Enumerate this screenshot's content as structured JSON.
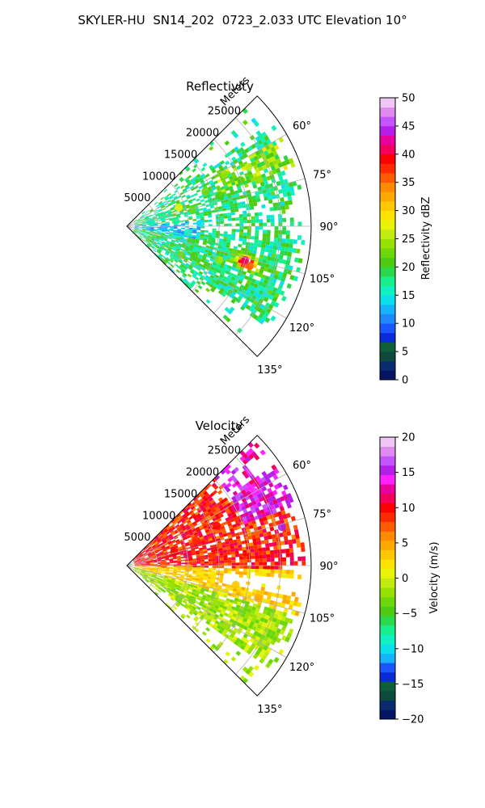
{
  "figure": {
    "title": "SKYLER-HU  SN14_202  0723_2.033 UTC Elevation 10°"
  },
  "chart_data": [
    {
      "type": "polar-sector-radar",
      "title": "Reflectivity",
      "radial_axis_label": "Meters",
      "radial_ticks": [
        5000,
        10000,
        15000,
        20000,
        25000
      ],
      "radial_tick_labels": [
        "5000",
        "10000",
        "15000",
        "20000",
        "25000"
      ],
      "rmax": 30000,
      "theta_range_deg": [
        45,
        135
      ],
      "angle_ticks_deg": [
        60,
        75,
        90,
        105,
        120,
        135
      ],
      "angle_tick_labels": [
        "60°",
        "75°",
        "90°",
        "105°",
        "120°",
        "135°"
      ],
      "colorbar": {
        "label": "Reflectivity dBZ",
        "range": [
          0,
          50
        ],
        "ticks": [
          0,
          5,
          10,
          15,
          20,
          25,
          30,
          35,
          40,
          45,
          50
        ],
        "tick_labels": [
          "0",
          "5",
          "10",
          "15",
          "20",
          "25",
          "30",
          "35",
          "40",
          "45",
          "50"
        ],
        "colors": [
          "#061464",
          "#0a2c6e",
          "#0c4a3e",
          "#0f5e3a",
          "#0a2ad8",
          "#1a55ff",
          "#1f88ff",
          "#14b4ff",
          "#0ce0ec",
          "#10f0c0",
          "#18ee8c",
          "#2ad84a",
          "#4ccc10",
          "#6cd80a",
          "#98e000",
          "#c2ec10",
          "#eaf208",
          "#ffe200",
          "#ffc800",
          "#ffa800",
          "#ff8a00",
          "#ff5a00",
          "#ff2a00",
          "#ff0000",
          "#f2005a",
          "#e8009c",
          "#b41ee8",
          "#c454ff",
          "#de8aee",
          "#f0c6f4"
        ]
      },
      "cells": [
        {
          "az": 62,
          "r": 18000,
          "v": 24
        },
        {
          "az": 64,
          "r": 22000,
          "v": 26
        },
        {
          "az": 66,
          "r": 14000,
          "v": 22
        },
        {
          "az": 68,
          "r": 20000,
          "v": 20
        },
        {
          "az": 70,
          "r": 9000,
          "v": 28
        },
        {
          "az": 72,
          "r": 16000,
          "v": 21
        },
        {
          "az": 74,
          "r": 6000,
          "v": 18
        },
        {
          "az": 76,
          "r": 11000,
          "v": 23
        },
        {
          "az": 80,
          "r": 4000,
          "v": 16
        },
        {
          "az": 84,
          "r": 8000,
          "v": 17
        },
        {
          "az": 88,
          "r": 12000,
          "v": 14
        },
        {
          "az": 92,
          "r": 6000,
          "v": 12
        },
        {
          "az": 96,
          "r": 10000,
          "v": 15
        },
        {
          "az": 100,
          "r": 14000,
          "v": 19
        },
        {
          "az": 104,
          "r": 18000,
          "v": 22
        },
        {
          "az": 106,
          "r": 20000,
          "v": 40
        },
        {
          "az": 108,
          "r": 21000,
          "v": 36
        },
        {
          "az": 110,
          "r": 16000,
          "v": 24
        },
        {
          "az": 114,
          "r": 12000,
          "v": 20
        },
        {
          "az": 118,
          "r": 10000,
          "v": 22
        },
        {
          "az": 122,
          "r": 9000,
          "v": 18
        }
      ]
    },
    {
      "type": "polar-sector-radar",
      "title": "Velocity",
      "radial_axis_label": "Meters",
      "radial_ticks": [
        5000,
        10000,
        15000,
        20000,
        25000
      ],
      "radial_tick_labels": [
        "5000",
        "10000",
        "15000",
        "20000",
        "25000"
      ],
      "rmax": 30000,
      "theta_range_deg": [
        45,
        135
      ],
      "angle_ticks_deg": [
        60,
        75,
        90,
        105,
        120,
        135
      ],
      "angle_tick_labels": [
        "60°",
        "75°",
        "90°",
        "105°",
        "120°",
        "135°"
      ],
      "colorbar": {
        "label": "Velocity (m/s)",
        "range": [
          -20,
          20
        ],
        "ticks": [
          -20,
          -15,
          -10,
          -5,
          0,
          5,
          10,
          15,
          20
        ],
        "tick_labels": [
          "−20",
          "−15",
          "−10",
          "−5",
          "0",
          "5",
          "10",
          "15",
          "20"
        ],
        "colors": [
          "#061464",
          "#0a2c6e",
          "#0c4a3e",
          "#0f5e3a",
          "#0a2ad8",
          "#1a55ff",
          "#14b4ff",
          "#0ce0ec",
          "#10f0c0",
          "#18ee8c",
          "#2ad84a",
          "#4ccc10",
          "#6cd80a",
          "#98e000",
          "#c2ec10",
          "#eaf208",
          "#ffe200",
          "#ffc800",
          "#ffa800",
          "#ff8a00",
          "#ff5a00",
          "#ff2a00",
          "#ff0000",
          "#f2005a",
          "#e8009c",
          "#ff20ff",
          "#b41ee8",
          "#c454ff",
          "#de8aee",
          "#f0c6f4"
        ]
      },
      "cells": [
        {
          "az": 60,
          "r": 24000,
          "v": 14
        },
        {
          "az": 62,
          "r": 20000,
          "v": 12
        },
        {
          "az": 66,
          "r": 16000,
          "v": 10
        },
        {
          "az": 70,
          "r": 12000,
          "v": 9
        },
        {
          "az": 74,
          "r": 8000,
          "v": 10
        },
        {
          "az": 76,
          "r": 26000,
          "v": 15
        },
        {
          "az": 80,
          "r": 10000,
          "v": 11
        },
        {
          "az": 84,
          "r": 14000,
          "v": 8
        },
        {
          "az": 88,
          "r": 6000,
          "v": 7
        },
        {
          "az": 92,
          "r": 10000,
          "v": 4
        },
        {
          "az": 96,
          "r": 14000,
          "v": 2
        },
        {
          "az": 100,
          "r": 18000,
          "v": 3
        },
        {
          "az": 104,
          "r": 22000,
          "v": 5
        },
        {
          "az": 106,
          "r": 16000,
          "v": 0
        },
        {
          "az": 110,
          "r": 10000,
          "v": -1
        },
        {
          "az": 114,
          "r": 8000,
          "v": -2
        },
        {
          "az": 118,
          "r": 12000,
          "v": -3
        },
        {
          "az": 122,
          "r": 10000,
          "v": -4
        }
      ]
    }
  ]
}
